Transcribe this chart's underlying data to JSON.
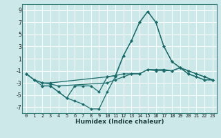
{
  "xlabel": "Humidex (Indice chaleur)",
  "xlim": [
    -0.5,
    23.5
  ],
  "ylim": [
    -8,
    10
  ],
  "yticks": [
    -7,
    -5,
    -3,
    -1,
    1,
    3,
    5,
    7,
    9
  ],
  "xticks": [
    0,
    1,
    2,
    3,
    4,
    5,
    6,
    7,
    8,
    9,
    10,
    11,
    12,
    13,
    14,
    15,
    16,
    17,
    18,
    19,
    20,
    21,
    22,
    23
  ],
  "bg_color": "#cce8e8",
  "grid_color": "#ffffff",
  "line_color": "#1a6b6b",
  "lines": [
    {
      "x": [
        0,
        1,
        2,
        3,
        10,
        11,
        12,
        13,
        14,
        15,
        16,
        17,
        18,
        19,
        20,
        21,
        22,
        23
      ],
      "y": [
        -1.5,
        -2.5,
        -3.0,
        -3.0,
        -2.0,
        -1.8,
        -1.5,
        -1.5,
        -1.5,
        -0.8,
        -0.8,
        -0.8,
        -1.0,
        -0.5,
        -1.0,
        -1.5,
        -2.0,
        -2.5
      ]
    },
    {
      "x": [
        0,
        1,
        2,
        3,
        4,
        10,
        11,
        12,
        13,
        14,
        15,
        16,
        17,
        18,
        19,
        20,
        21,
        22,
        23
      ],
      "y": [
        -1.5,
        -2.5,
        -3.0,
        -3.2,
        -3.5,
        -3.0,
        -2.5,
        -2.0,
        -1.5,
        -1.5,
        -0.8,
        -1.0,
        -1.0,
        -1.0,
        -0.5,
        -1.0,
        -1.5,
        -2.0,
        -2.5
      ]
    },
    {
      "x": [
        0,
        1,
        2,
        3,
        4,
        5,
        6,
        7,
        8,
        9,
        10,
        11,
        12,
        13,
        14,
        15,
        16,
        17,
        18,
        19,
        20,
        21,
        22,
        23
      ],
      "y": [
        -1.5,
        -2.5,
        -3.5,
        -3.5,
        -4.5,
        -5.5,
        -3.5,
        -3.5,
        -3.5,
        -4.5,
        -2.0,
        -1.8,
        1.5,
        4.0,
        7.0,
        8.8,
        7.0,
        3.0,
        0.5,
        -0.5,
        -1.5,
        -2.0,
        -2.5,
        -2.5
      ]
    },
    {
      "x": [
        2,
        3,
        4,
        5,
        6,
        7,
        8,
        9,
        10,
        11,
        12,
        13,
        14,
        15,
        16,
        17,
        18,
        19,
        20,
        21,
        22,
        23
      ],
      "y": [
        -3.5,
        -3.5,
        -4.5,
        -5.5,
        -6.0,
        -6.5,
        -7.3,
        -7.3,
        -4.5,
        -2.0,
        1.5,
        4.0,
        7.0,
        8.8,
        7.0,
        3.0,
        0.5,
        -0.5,
        -1.5,
        -2.0,
        -2.5,
        -2.5
      ]
    }
  ]
}
